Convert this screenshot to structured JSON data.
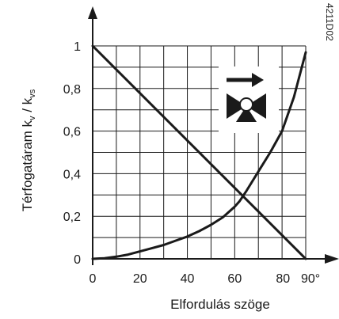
{
  "chart_data": {
    "type": "line",
    "xlabel": "Elfordulás szöge",
    "ylabel": "Térfogatáram kᵥ / kᵥₛ",
    "ylabel_parts": {
      "main": "Térfogatáram k",
      "sub1": "v",
      "sep": " / k",
      "sub2": "vs"
    },
    "x_ticks": [
      "0",
      "20",
      "40",
      "60",
      "80",
      "90°"
    ],
    "y_ticks": [
      "0",
      "0,2",
      "0,4",
      "0,6",
      "0,8",
      "1"
    ],
    "xlim": [
      0,
      90
    ],
    "ylim": [
      0,
      1
    ],
    "grid": true,
    "drawing_ref": "4211D02",
    "series": [
      {
        "values_x": [
          0,
          5,
          10,
          15,
          20,
          25,
          30,
          35,
          40,
          45,
          50,
          55,
          60,
          62,
          65,
          70,
          75,
          80,
          85,
          90
        ],
        "values_y": [
          0,
          0.003,
          0.01,
          0.02,
          0.035,
          0.05,
          0.065,
          0.085,
          0.105,
          0.13,
          0.16,
          0.195,
          0.245,
          0.27,
          0.32,
          0.41,
          0.5,
          0.6,
          0.76,
          0.97
        ]
      },
      {
        "values_x": [
          0,
          90
        ],
        "values_y": [
          1,
          0
        ]
      }
    ],
    "colors": {
      "line": "#1a1a1a",
      "grid": "#1a1a1a",
      "background": "#ffffff"
    },
    "icon": "valve-flow-arrow-icon"
  }
}
